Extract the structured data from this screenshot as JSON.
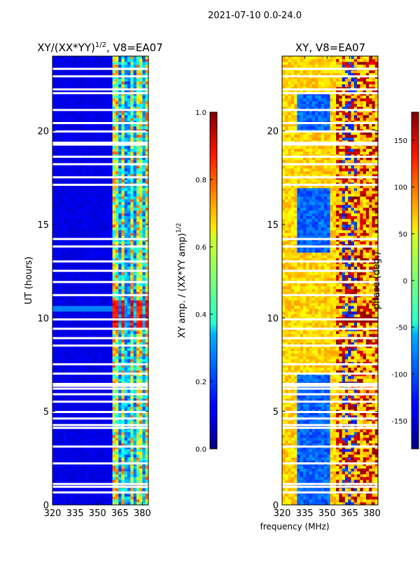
{
  "suptitle": "2021-07-10 0.0-24.0",
  "xlabel": "frequency (MHz)",
  "chart_data": [
    {
      "type": "heatmap",
      "title_prefix": "XY/(XX*YY)",
      "title_exponent": "1/2",
      "title_suffix": ", V8=EA07",
      "xlabel": "frequency (MHz)",
      "ylabel": "UT (hours)",
      "xlim": [
        320,
        384
      ],
      "ylim": [
        0,
        24
      ],
      "xticks": [
        320,
        335,
        350,
        365,
        380
      ],
      "yticks": [
        0,
        5,
        10,
        15,
        20
      ],
      "colorbar": {
        "label_prefix": "XY amp. / (XX*YY amp)",
        "label_exponent": "1/2",
        "range": [
          0.0,
          1.0
        ],
        "ticks": [
          "0.0",
          "0.2",
          "0.4",
          "0.6",
          "0.8",
          "1.0"
        ],
        "colormap": "jet"
      },
      "flagged_gaps_hours": [
        0.65,
        0.95,
        1.1,
        2.2,
        3.1,
        4.1,
        4.25,
        4.6,
        4.95,
        5.5,
        5.9,
        6.2,
        6.35,
        6.45,
        7.0,
        7.5,
        8.5,
        8.9,
        9.4,
        9.9,
        11.2,
        11.9,
        12.5,
        13.0,
        13.8,
        14.2,
        17.1,
        17.5,
        18.2,
        18.6,
        19.25,
        19.35,
        19.95,
        20.4,
        21.1,
        22.0,
        22.2,
        22.9,
        23.3
      ],
      "description_values": "Low amplitude (~0.1) below 360 MHz; elevated, patchy amplitude (0.3-0.9) in 360-384 MHz band"
    },
    {
      "type": "heatmap",
      "title": "XY, V8=EA07",
      "xlabel": "frequency (MHz)",
      "ylabel": "phase (deg.)",
      "xlim": [
        320,
        384
      ],
      "ylim": [
        0,
        24
      ],
      "xticks": [
        320,
        335,
        350,
        365,
        380
      ],
      "yticks": [
        0,
        5,
        10,
        15,
        20
      ],
      "colorbar": {
        "label": "phase (deg.)",
        "range": [
          -180,
          180
        ],
        "ticks": [
          "-150",
          "-100",
          "-50",
          "0",
          "50",
          "100",
          "150"
        ],
        "colormap": "jet"
      },
      "flagged_gaps_hours": [
        0.65,
        0.95,
        1.1,
        2.2,
        3.1,
        4.1,
        4.25,
        4.6,
        4.95,
        5.5,
        5.9,
        6.2,
        6.35,
        6.45,
        7.0,
        7.5,
        8.5,
        8.9,
        9.4,
        9.9,
        11.2,
        11.9,
        12.5,
        13.0,
        13.8,
        14.2,
        17.1,
        17.5,
        18.2,
        18.6,
        19.25,
        19.35,
        19.95,
        20.4,
        21.1,
        22.0,
        22.2,
        22.9,
        23.3
      ],
      "description_values": "Phase mostly 0-100 deg with blue (-130 deg) patches 330-350 MHz before 7 UT and around 14-17 UT; red/dark (120-180 deg) patches above 355 MHz"
    }
  ]
}
